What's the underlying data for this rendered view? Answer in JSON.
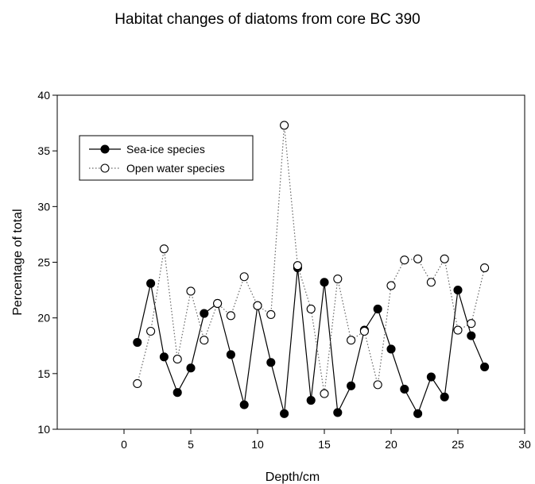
{
  "chart_data": {
    "type": "line",
    "title": "Habitat changes of diatoms from core BC 390",
    "xlabel": "Depth/cm",
    "ylabel": "Percentage of total",
    "xlim": [
      -5,
      30
    ],
    "ylim": [
      10,
      40
    ],
    "x_ticks": [
      "0",
      "5",
      "10",
      "15",
      "20",
      "25",
      "30"
    ],
    "y_ticks": [
      "10",
      "15",
      "20",
      "25",
      "30",
      "35",
      "40"
    ],
    "grid": false,
    "legend_position": "top-left",
    "x": [
      1,
      2,
      3,
      4,
      5,
      6,
      7,
      8,
      9,
      10,
      11,
      12,
      13,
      14,
      15,
      16,
      17,
      18,
      19,
      20,
      21,
      22,
      23,
      24,
      25,
      26,
      27
    ],
    "series": [
      {
        "name": "Sea-ice species",
        "line_style": "solid",
        "marker": "filled-circle",
        "color": "#000000",
        "values": [
          17.8,
          23.1,
          16.5,
          13.3,
          15.5,
          20.4,
          21.3,
          16.7,
          12.2,
          21.1,
          16.0,
          11.4,
          24.5,
          12.6,
          23.2,
          11.5,
          13.9,
          18.9,
          20.8,
          17.2,
          13.6,
          11.4,
          14.7,
          12.9,
          22.5,
          18.4,
          15.6
        ]
      },
      {
        "name": "Open water species",
        "line_style": "dotted",
        "marker": "open-circle",
        "color": "#555555",
        "values": [
          14.1,
          18.8,
          26.2,
          16.3,
          22.4,
          18.0,
          21.3,
          20.2,
          23.7,
          21.1,
          20.3,
          37.3,
          24.7,
          20.8,
          13.2,
          23.5,
          18.0,
          18.8,
          14.0,
          22.9,
          25.2,
          25.3,
          23.2,
          25.3,
          18.9,
          19.5,
          24.5
        ]
      }
    ]
  }
}
